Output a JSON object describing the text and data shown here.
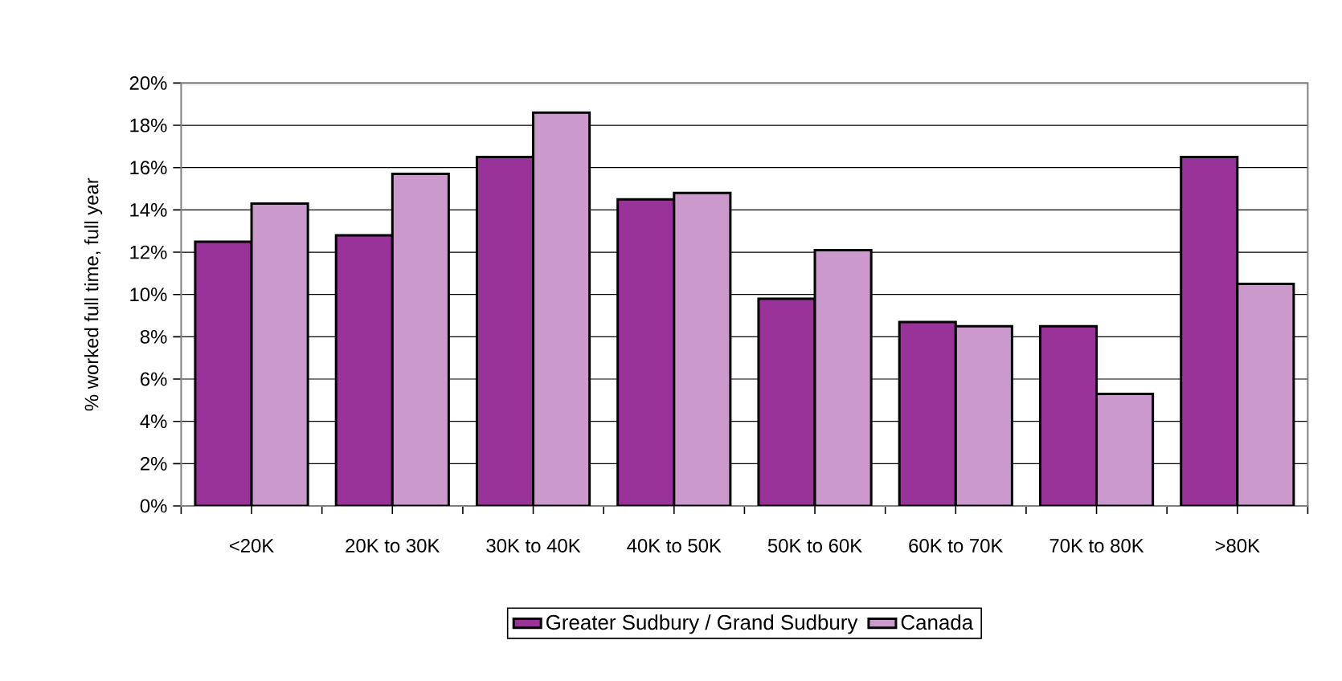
{
  "chart_data": {
    "type": "bar",
    "ylabel": "% worked full time, full year",
    "categories": [
      "<20K",
      "20K to 30K",
      "30K to 40K",
      "40K to 50K",
      "50K to 60K",
      "60K to 70K",
      "70K to 80K",
      ">80K"
    ],
    "series": [
      {
        "name": "Greater Sudbury / Grand Sudbury",
        "color": "#993399",
        "values": [
          12.5,
          12.8,
          16.5,
          14.5,
          9.8,
          8.7,
          8.5,
          16.5
        ]
      },
      {
        "name": "Canada",
        "color": "#cc99cc",
        "values": [
          14.3,
          15.7,
          18.6,
          14.8,
          12.1,
          8.5,
          5.3,
          10.5
        ]
      }
    ],
    "ylim": [
      0,
      20
    ],
    "yticks": [
      {
        "value": 0,
        "label": "0%"
      },
      {
        "value": 2,
        "label": "2%"
      },
      {
        "value": 4,
        "label": "4%"
      },
      {
        "value": 6,
        "label": "6%"
      },
      {
        "value": 8,
        "label": "8%"
      },
      {
        "value": 10,
        "label": "10%"
      },
      {
        "value": 12,
        "label": "12%"
      },
      {
        "value": 14,
        "label": "14%"
      },
      {
        "value": 16,
        "label": "16%"
      },
      {
        "value": 18,
        "label": "18%"
      },
      {
        "value": 20,
        "label": "20%"
      }
    ],
    "grid": "y",
    "legend": "bottom"
  }
}
